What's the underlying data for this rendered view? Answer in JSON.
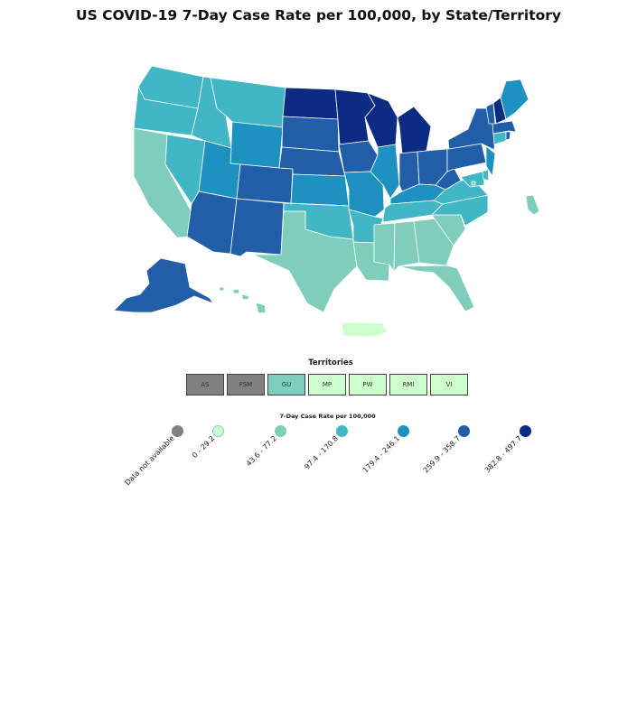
{
  "title": "US COVID-19 7-Day Case Rate per 100,000, by State/Territory",
  "colors": {
    "na": "#808080",
    "c1": "#ccffcc",
    "c2": "#7fcdbb",
    "c3": "#41b6c4",
    "c4": "#1d91c0",
    "c5": "#225ea8",
    "c6": "#0c2c84",
    "border": "#ffffff"
  },
  "territories_title": "Territories",
  "territories": [
    {
      "abbr": "AS",
      "bin": "na"
    },
    {
      "abbr": "FSM",
      "bin": "na"
    },
    {
      "abbr": "GU",
      "bin": "c2"
    },
    {
      "abbr": "MP",
      "bin": "c1"
    },
    {
      "abbr": "PW",
      "bin": "c1"
    },
    {
      "abbr": "RMI",
      "bin": "c1"
    },
    {
      "abbr": "VI",
      "bin": "c1"
    }
  ],
  "legend_title": "7-Day Case Rate per 100,000",
  "legend": [
    {
      "label": "Data not available",
      "bin": "na"
    },
    {
      "label": "0 - 29.2",
      "bin": "c1"
    },
    {
      "label": "43.6 - 77.2",
      "bin": "c2"
    },
    {
      "label": "97.4 - 170.8",
      "bin": "c3"
    },
    {
      "label": "179.4 - 246.1",
      "bin": "c4"
    },
    {
      "label": "259.9 - 358.7",
      "bin": "c5"
    },
    {
      "label": "382.8 - 497.7",
      "bin": "c6"
    }
  ],
  "states": {
    "WA": "c3",
    "OR": "c3",
    "CA": "c2",
    "NV": "c3",
    "ID": "c3",
    "MT": "c3",
    "WY": "c4",
    "UT": "c4",
    "AZ": "c5",
    "CO": "c5",
    "NM": "c5",
    "ND": "c6",
    "SD": "c5",
    "NE": "c5",
    "KS": "c4",
    "OK": "c3",
    "TX": "c2",
    "MN": "c6",
    "IA": "c5",
    "MO": "c4",
    "AR": "c3",
    "LA": "c2",
    "WI": "c6",
    "IL": "c4",
    "MI": "c6",
    "IN": "c5",
    "OH": "c5",
    "KY": "c4",
    "TN": "c3",
    "MS": "c2",
    "AL": "c2",
    "GA": "c2",
    "FL": "c2",
    "SC": "c2",
    "NC": "c3",
    "VA": "c3",
    "WV": "c5",
    "PA": "c5",
    "NY": "c5",
    "VT": "c5",
    "NH": "c6",
    "ME": "c4",
    "MA": "c5",
    "RI": "c5",
    "CT": "c3",
    "NJ": "c4",
    "DE": "c3",
    "MD": "c3",
    "DC": "c2",
    "AK": "c5",
    "HI": "c2",
    "PR": "c1",
    "GU": "c2"
  }
}
